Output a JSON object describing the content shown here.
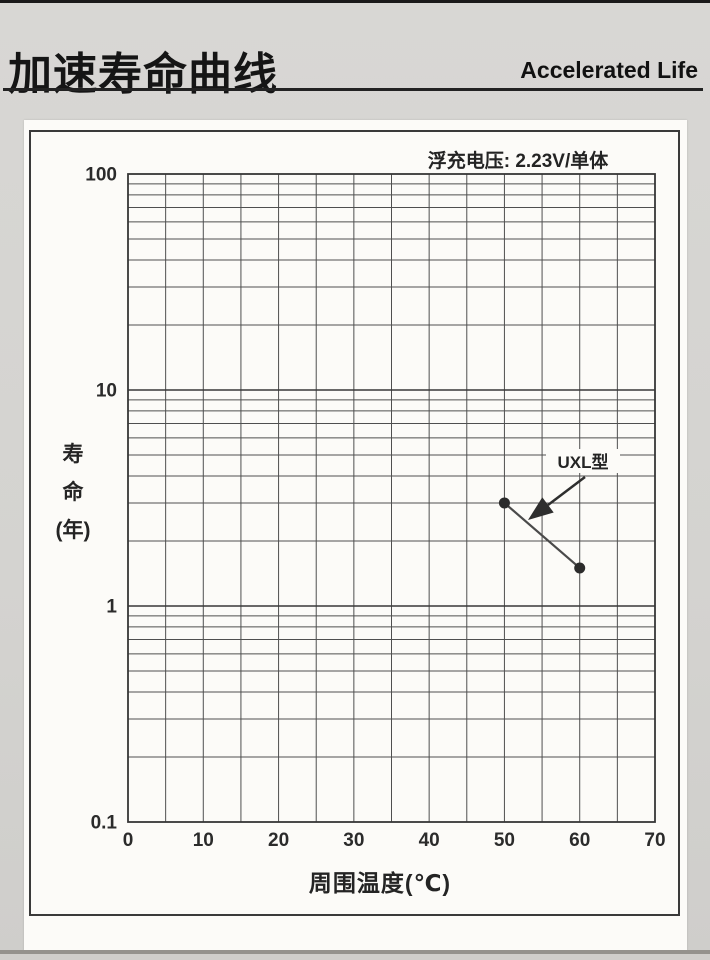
{
  "header": {
    "title_zh": "加速寿命曲线",
    "title_en": "Accelerated Life"
  },
  "colors": {
    "ink": "#2b2b2b",
    "grid_minor": "#4f4f4f",
    "grid_major": "#383838",
    "frame": "#363636",
    "series": "#4a4a4a",
    "panel_bg": "#fcfbf8",
    "page_bg": "#d4d3d0"
  },
  "chart_data": {
    "type": "line",
    "title": "",
    "annotation": "浮充电压: 2.23V/单体",
    "xlabel": "周围温度(℃)",
    "ylabel": "寿\n命\n(年)",
    "xlim": [
      0,
      70
    ],
    "ylim": [
      0.1,
      100
    ],
    "yscale": "log",
    "xscale": "linear",
    "grid": true,
    "x_grid_step": 5,
    "xticks": [
      0,
      10,
      20,
      30,
      40,
      50,
      60,
      70
    ],
    "yticks": [
      100,
      10,
      1,
      0.1
    ],
    "legend_position": "in-plot-annotation",
    "series": [
      {
        "name": "UXL型",
        "x": [
          50,
          60
        ],
        "y": [
          3,
          1.5
        ]
      }
    ]
  }
}
